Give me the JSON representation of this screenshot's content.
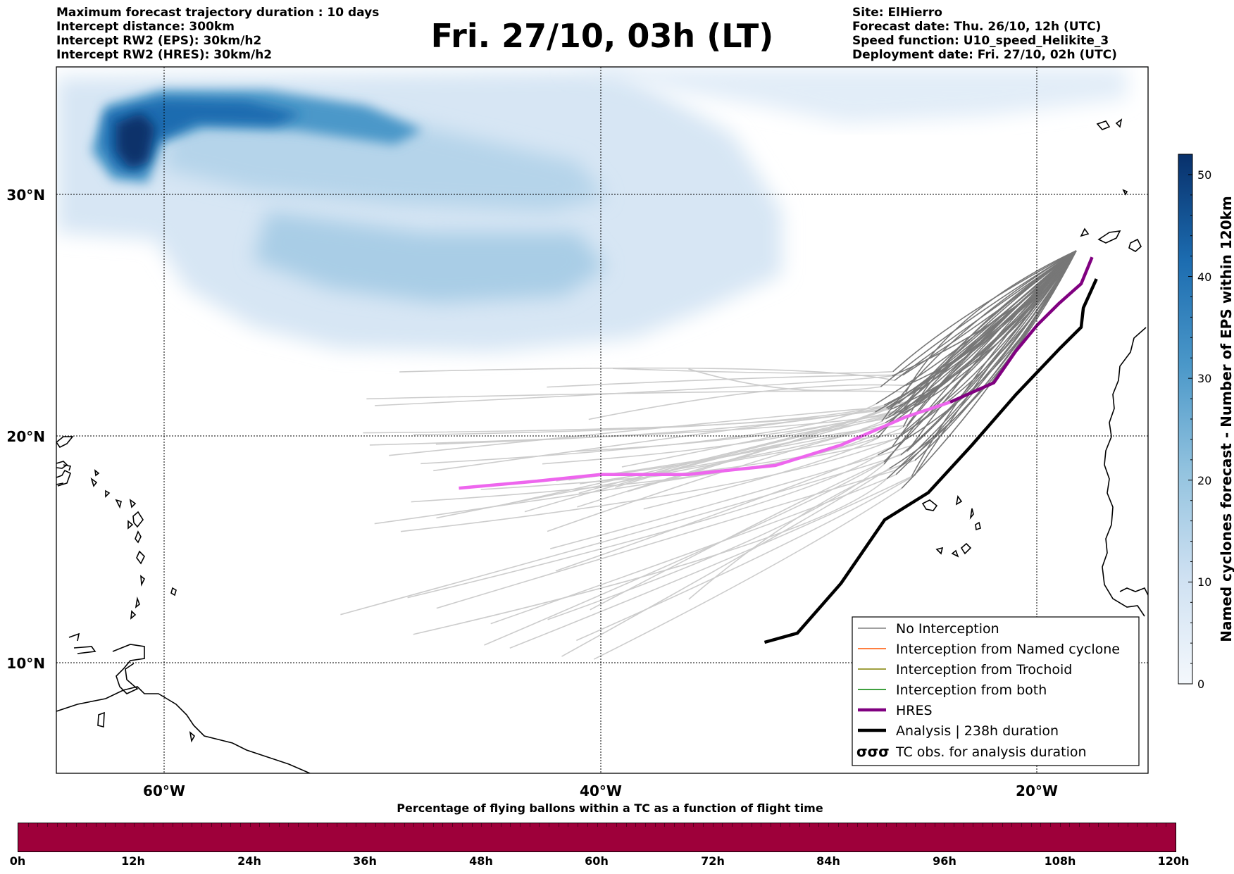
{
  "header_left": [
    "Maximum forecast trajectory duration : 10 days",
    "Intercept distance: 300km",
    "Intercept RW2 (EPS):  30km/h2",
    "Intercept RW2 (HRES): 30km/h2"
  ],
  "title": "Fri. 27/10, 03h (LT)",
  "header_right": [
    "Site: ElHierro",
    "Forecast date: Thu. 26/10, 12h (UTC)",
    "Speed function: U10_speed_Helikite_3",
    "Deployment date: Fri. 27/10, 02h (UTC)"
  ],
  "map": {
    "lon_labels": [
      "60°W",
      "40°W",
      "20°W"
    ],
    "lat_labels": [
      "30°N",
      "20°N",
      "10°N"
    ],
    "grid": "dotted",
    "density_colormap": "Blues",
    "colors": {
      "eps_no_interception": "#808080",
      "eps_light": "#cccccc",
      "named_cyclone": "#ff5500",
      "trochoid": "#808000",
      "both": "#008000",
      "hres": "#800080",
      "hres_segment": "#ee66ee",
      "analysis": "#000000"
    }
  },
  "legend": [
    {
      "key": "no_interception",
      "label": "No Interception"
    },
    {
      "key": "named_cyclone",
      "label": "Interception from Named cyclone"
    },
    {
      "key": "trochoid",
      "label": "Interception from Trochoid"
    },
    {
      "key": "both",
      "label": "Interception from both"
    },
    {
      "key": "hres",
      "label": "HRES"
    },
    {
      "key": "analysis",
      "label": "Analysis | 238h duration"
    },
    {
      "key": "tc_obs",
      "label": "TC obs. for analysis duration",
      "symbol": "σσσ"
    }
  ],
  "colorbar": {
    "label": "Named cyclones forecast - Number of EPS within 120km",
    "ticks": [
      "0",
      "10",
      "20",
      "30",
      "40",
      "50"
    ],
    "range": [
      0,
      52
    ]
  },
  "percentage_bar": {
    "title": "Percentage of flying ballons within a TC as a function of flight time",
    "ticks": [
      "0h",
      "12h",
      "24h",
      "36h",
      "48h",
      "60h",
      "72h",
      "84h",
      "96h",
      "108h",
      "120h"
    ],
    "color": "#9e003a"
  },
  "chart_data": {
    "type": "map",
    "title": "Fri. 27/10, 03h (LT)",
    "lon_range": [
      -65,
      -15
    ],
    "lat_range": [
      5,
      35
    ],
    "hres_track": {
      "lon": [
        -46.5,
        -43,
        -40,
        -36,
        -32,
        -29,
        -26,
        -24,
        -22,
        -21,
        -20,
        -19,
        -18,
        -17.5
      ],
      "lat": [
        17.7,
        18.0,
        18.3,
        18.3,
        18.7,
        19.6,
        20.8,
        21.4,
        22.2,
        23.5,
        24.6,
        25.5,
        26.3,
        27.4
      ]
    },
    "analysis_track": {
      "lon": [
        -32.5,
        -31,
        -29,
        -27,
        -25,
        -23,
        -21,
        -19,
        -18,
        -17.9,
        -17.3
      ],
      "lat": [
        10.9,
        11.3,
        13.5,
        16.3,
        17.5,
        19.6,
        21.7,
        23.6,
        24.5,
        25.3,
        26.5
      ]
    }
  }
}
